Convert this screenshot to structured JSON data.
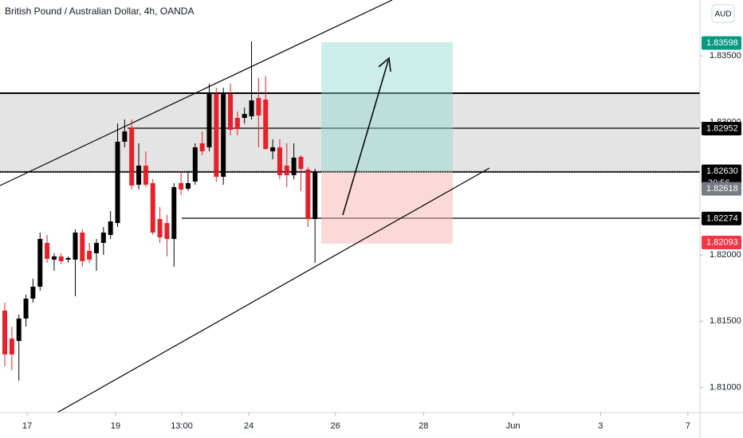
{
  "chart_data": {
    "type": "candlestick",
    "title": "British Pound / Australian Dollar, 4h, OANDA",
    "currency": "AUD",
    "up_color": "#000000",
    "down_color": "#e8202a",
    "open": [
      1.8158,
      1.81369,
      1.81351,
      1.8152,
      1.8167,
      1.8176,
      1.8209,
      1.81964,
      1.81988,
      1.81964,
      1.81964,
      1.82168,
      1.8203,
      1.82012,
      1.8209,
      1.8215,
      1.8224,
      1.82853,
      1.82961,
      1.82529,
      1.82673,
      1.82541,
      1.8227,
      1.8224,
      1.8212,
      1.82541,
      1.82499,
      1.82553,
      1.82841,
      1.82811,
      1.83213,
      1.82589,
      1.83213,
      1.83033,
      1.83033,
      1.83045,
      1.83183,
      1.83171,
      1.82781,
      1.82811,
      1.82673,
      1.82601,
      1.82739,
      1.82643,
      1.8227
    ],
    "high": [
      1.8164,
      1.81459,
      1.8155,
      1.817,
      1.8182,
      1.82168,
      1.8215,
      1.82012,
      1.82012,
      1.81988,
      1.82192,
      1.82192,
      1.8209,
      1.8212,
      1.8221,
      1.8233,
      1.82991,
      1.83021,
      1.83021,
      1.82841,
      1.82781,
      1.82571,
      1.8236,
      1.823,
      1.82541,
      1.82631,
      1.82631,
      1.82841,
      1.82931,
      1.83291,
      1.83261,
      1.83261,
      1.83291,
      1.83081,
      1.83111,
      1.8361,
      1.83333,
      1.83351,
      1.82871,
      1.82871,
      1.82841,
      1.82841,
      1.82751,
      1.82661,
      1.82649
    ],
    "low": [
      1.81159,
      1.81129,
      1.81051,
      1.81459,
      1.8164,
      1.8173,
      1.8194,
      1.8188,
      1.81928,
      1.8194,
      1.81688,
      1.8191,
      1.8194,
      1.8188,
      1.82,
      1.8212,
      1.8221,
      1.82811,
      1.82493,
      1.82493,
      1.82511,
      1.8215,
      1.8209,
      1.81988,
      1.8191,
      1.82451,
      1.82481,
      1.82529,
      1.82751,
      1.82781,
      1.82553,
      1.82529,
      1.82901,
      1.82901,
      1.82991,
      1.83021,
      1.82811,
      1.82793,
      1.82721,
      1.82571,
      1.82511,
      1.82571,
      1.82481,
      1.8221,
      1.8194
    ],
    "close": [
      1.81249,
      1.81249,
      1.8152,
      1.8167,
      1.8176,
      1.8212,
      1.8197,
      1.81988,
      1.81952,
      1.81976,
      1.82168,
      1.81952,
      1.81964,
      1.8209,
      1.82168,
      1.82252,
      1.82853,
      1.82931,
      1.82523,
      1.82673,
      1.82529,
      1.82168,
      1.82132,
      1.8212,
      1.82511,
      1.82493,
      1.82541,
      1.82811,
      1.82781,
      1.83213,
      1.82589,
      1.83213,
      1.82943,
      1.82949,
      1.83063,
      1.83165,
      1.83051,
      1.82799,
      1.82811,
      1.82601,
      1.82601,
      1.82733,
      1.82649,
      1.8227,
      1.82625
    ],
    "xlim": [
      -0.68,
      98.6
    ],
    "xticks": [
      {
        "value": 3.17,
        "label": "17"
      },
      {
        "value": 15.7,
        "label": "19"
      },
      {
        "value": 25.1,
        "label": "13:00"
      },
      {
        "value": 34.6,
        "label": "24"
      },
      {
        "value": 46.9,
        "label": "26"
      },
      {
        "value": 59.4,
        "label": "28"
      },
      {
        "value": 72.1,
        "label": "Jun"
      },
      {
        "value": 84.5,
        "label": "3"
      },
      {
        "value": 96.9,
        "label": "7"
      }
    ],
    "ylim": [
      1.80811,
      1.83922
    ],
    "yticks": [
      {
        "value": 1.81,
        "label": "1.81000"
      },
      {
        "value": 1.815,
        "label": "1.81500"
      },
      {
        "value": 1.82,
        "label": "1.82000"
      },
      {
        "value": 1.83,
        "label": "1.83000"
      },
      {
        "value": 1.835,
        "label": "1.83500"
      }
    ],
    "grid": false,
    "price_labels": [
      {
        "value": 1.83598,
        "label": "1.83598",
        "color": "#089981"
      },
      {
        "value": 1.82952,
        "label": "1.82952",
        "color": "#000000"
      },
      {
        "value": 1.8263,
        "label": "1.82630",
        "color": "#000000"
      },
      {
        "value": 1.82618,
        "label": "1.82618",
        "color": "#787b86"
      },
      {
        "value": 1.82274,
        "label": "1.82274",
        "color": "#000000"
      },
      {
        "value": 1.82093,
        "label": "1.82093",
        "color": "#f23645"
      }
    ],
    "countdown": "30:56"
  }
}
